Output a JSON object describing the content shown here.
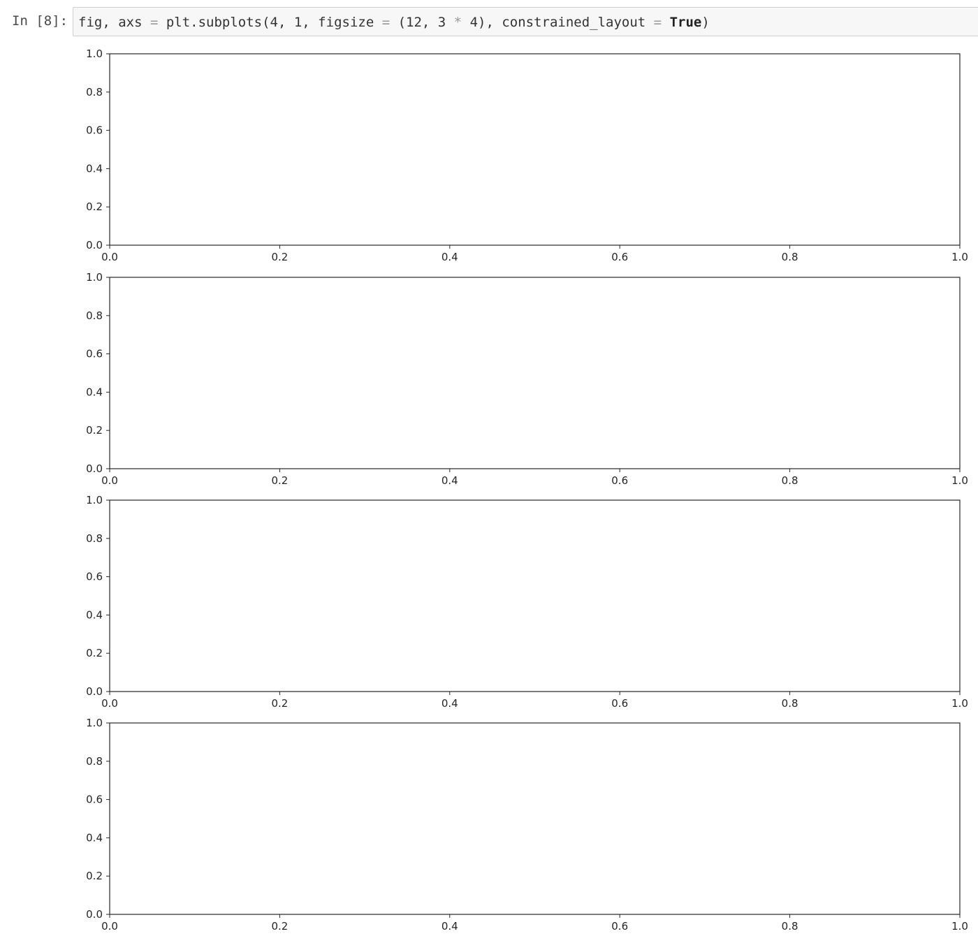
{
  "cell": {
    "prompt": "In [8]:",
    "code": {
      "t1": "fig, axs ",
      "op1": "=",
      "t2": " plt.subplots(4, 1, figsize ",
      "op2": "=",
      "t3": " (12, 3 ",
      "op3": "*",
      "t4": " 4), constrained_layout ",
      "op4": "=",
      "t5": " ",
      "kw": "True",
      "t6": ")"
    }
  },
  "chart_data": [
    {
      "type": "line",
      "series": [],
      "xlim": [
        0.0,
        1.0
      ],
      "ylim": [
        0.0,
        1.0
      ],
      "xticks": [
        "0.0",
        "0.2",
        "0.4",
        "0.6",
        "0.8",
        "1.0"
      ],
      "yticks": [
        "0.0",
        "0.2",
        "0.4",
        "0.6",
        "0.8",
        "1.0"
      ],
      "grid": false,
      "title": "",
      "xlabel": "",
      "ylabel": ""
    },
    {
      "type": "line",
      "series": [],
      "xlim": [
        0.0,
        1.0
      ],
      "ylim": [
        0.0,
        1.0
      ],
      "xticks": [
        "0.0",
        "0.2",
        "0.4",
        "0.6",
        "0.8",
        "1.0"
      ],
      "yticks": [
        "0.0",
        "0.2",
        "0.4",
        "0.6",
        "0.8",
        "1.0"
      ],
      "grid": false,
      "title": "",
      "xlabel": "",
      "ylabel": ""
    },
    {
      "type": "line",
      "series": [],
      "xlim": [
        0.0,
        1.0
      ],
      "ylim": [
        0.0,
        1.0
      ],
      "xticks": [
        "0.0",
        "0.2",
        "0.4",
        "0.6",
        "0.8",
        "1.0"
      ],
      "yticks": [
        "0.0",
        "0.2",
        "0.4",
        "0.6",
        "0.8",
        "1.0"
      ],
      "grid": false,
      "title": "",
      "xlabel": "",
      "ylabel": ""
    },
    {
      "type": "line",
      "series": [],
      "xlim": [
        0.0,
        1.0
      ],
      "ylim": [
        0.0,
        1.0
      ],
      "xticks": [
        "0.0",
        "0.2",
        "0.4",
        "0.6",
        "0.8",
        "1.0"
      ],
      "yticks": [
        "0.0",
        "0.2",
        "0.4",
        "0.6",
        "0.8",
        "1.0"
      ],
      "grid": false,
      "title": "",
      "xlabel": "",
      "ylabel": ""
    }
  ]
}
